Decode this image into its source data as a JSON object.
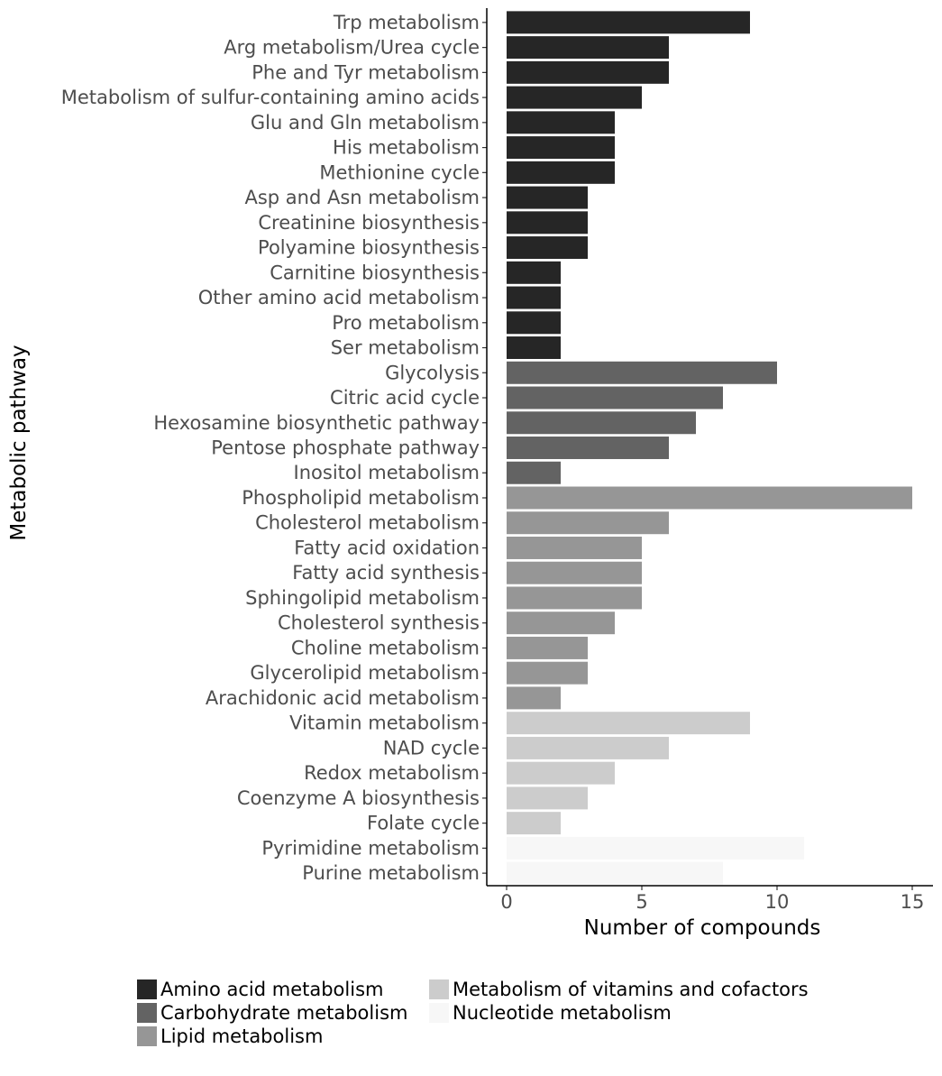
{
  "chart_data": {
    "type": "bar",
    "orientation": "horizontal",
    "xlabel": "Number of compounds",
    "ylabel": "Metabolic pathway",
    "xlim": [
      0,
      15
    ],
    "xticks": [
      0,
      5,
      10,
      15
    ],
    "grid": false,
    "legend_position": "bottom",
    "legend": [
      {
        "name": "Amino acid metabolism",
        "color": "#262626"
      },
      {
        "name": "Carbohydrate metabolism",
        "color": "#636363"
      },
      {
        "name": "Lipid metabolism",
        "color": "#969696"
      },
      {
        "name": "Metabolism of vitamins and cofactors",
        "color": "#cccccc"
      },
      {
        "name": "Nucleotide metabolism",
        "color": "#f7f7f7"
      }
    ],
    "bars": [
      {
        "category": "Trp metabolism",
        "value": 9,
        "group": "Amino acid metabolism"
      },
      {
        "category": "Arg metabolism/Urea cycle",
        "value": 6,
        "group": "Amino acid metabolism"
      },
      {
        "category": "Phe and Tyr metabolism",
        "value": 6,
        "group": "Amino acid metabolism"
      },
      {
        "category": "Metabolism of sulfur-containing amino acids",
        "value": 5,
        "group": "Amino acid metabolism"
      },
      {
        "category": "Glu and Gln metabolism",
        "value": 4,
        "group": "Amino acid metabolism"
      },
      {
        "category": "His metabolism",
        "value": 4,
        "group": "Amino acid metabolism"
      },
      {
        "category": "Methionine cycle",
        "value": 4,
        "group": "Amino acid metabolism"
      },
      {
        "category": "Asp and Asn metabolism",
        "value": 3,
        "group": "Amino acid metabolism"
      },
      {
        "category": "Creatinine biosynthesis",
        "value": 3,
        "group": "Amino acid metabolism"
      },
      {
        "category": "Polyamine biosynthesis",
        "value": 3,
        "group": "Amino acid metabolism"
      },
      {
        "category": "Carnitine biosynthesis",
        "value": 2,
        "group": "Amino acid metabolism"
      },
      {
        "category": "Other amino acid metabolism",
        "value": 2,
        "group": "Amino acid metabolism"
      },
      {
        "category": "Pro metabolism",
        "value": 2,
        "group": "Amino acid metabolism"
      },
      {
        "category": "Ser metabolism",
        "value": 2,
        "group": "Amino acid metabolism"
      },
      {
        "category": "Glycolysis",
        "value": 10,
        "group": "Carbohydrate metabolism"
      },
      {
        "category": "Citric acid cycle",
        "value": 8,
        "group": "Carbohydrate metabolism"
      },
      {
        "category": "Hexosamine biosynthetic pathway",
        "value": 7,
        "group": "Carbohydrate metabolism"
      },
      {
        "category": "Pentose phosphate pathway",
        "value": 6,
        "group": "Carbohydrate metabolism"
      },
      {
        "category": "Inositol metabolism",
        "value": 2,
        "group": "Carbohydrate metabolism"
      },
      {
        "category": "Phospholipid metabolism",
        "value": 15,
        "group": "Lipid metabolism"
      },
      {
        "category": "Cholesterol metabolism",
        "value": 6,
        "group": "Lipid metabolism"
      },
      {
        "category": "Fatty acid oxidation",
        "value": 5,
        "group": "Lipid metabolism"
      },
      {
        "category": "Fatty acid synthesis",
        "value": 5,
        "group": "Lipid metabolism"
      },
      {
        "category": "Sphingolipid metabolism",
        "value": 5,
        "group": "Lipid metabolism"
      },
      {
        "category": "Cholesterol synthesis",
        "value": 4,
        "group": "Lipid metabolism"
      },
      {
        "category": "Choline metabolism",
        "value": 3,
        "group": "Lipid metabolism"
      },
      {
        "category": "Glycerolipid metabolism",
        "value": 3,
        "group": "Lipid metabolism"
      },
      {
        "category": "Arachidonic acid metabolism",
        "value": 2,
        "group": "Lipid metabolism"
      },
      {
        "category": "Vitamin metabolism",
        "value": 9,
        "group": "Metabolism of vitamins and cofactors"
      },
      {
        "category": "NAD cycle",
        "value": 6,
        "group": "Metabolism of vitamins and cofactors"
      },
      {
        "category": "Redox metabolism",
        "value": 4,
        "group": "Metabolism of vitamins and cofactors"
      },
      {
        "category": "Coenzyme A biosynthesis",
        "value": 3,
        "group": "Metabolism of vitamins and cofactors"
      },
      {
        "category": "Folate cycle",
        "value": 2,
        "group": "Metabolism of vitamins and cofactors"
      },
      {
        "category": "Pyrimidine metabolism",
        "value": 11,
        "group": "Nucleotide metabolism"
      },
      {
        "category": "Purine metabolism",
        "value": 8,
        "group": "Nucleotide metabolism"
      }
    ]
  }
}
